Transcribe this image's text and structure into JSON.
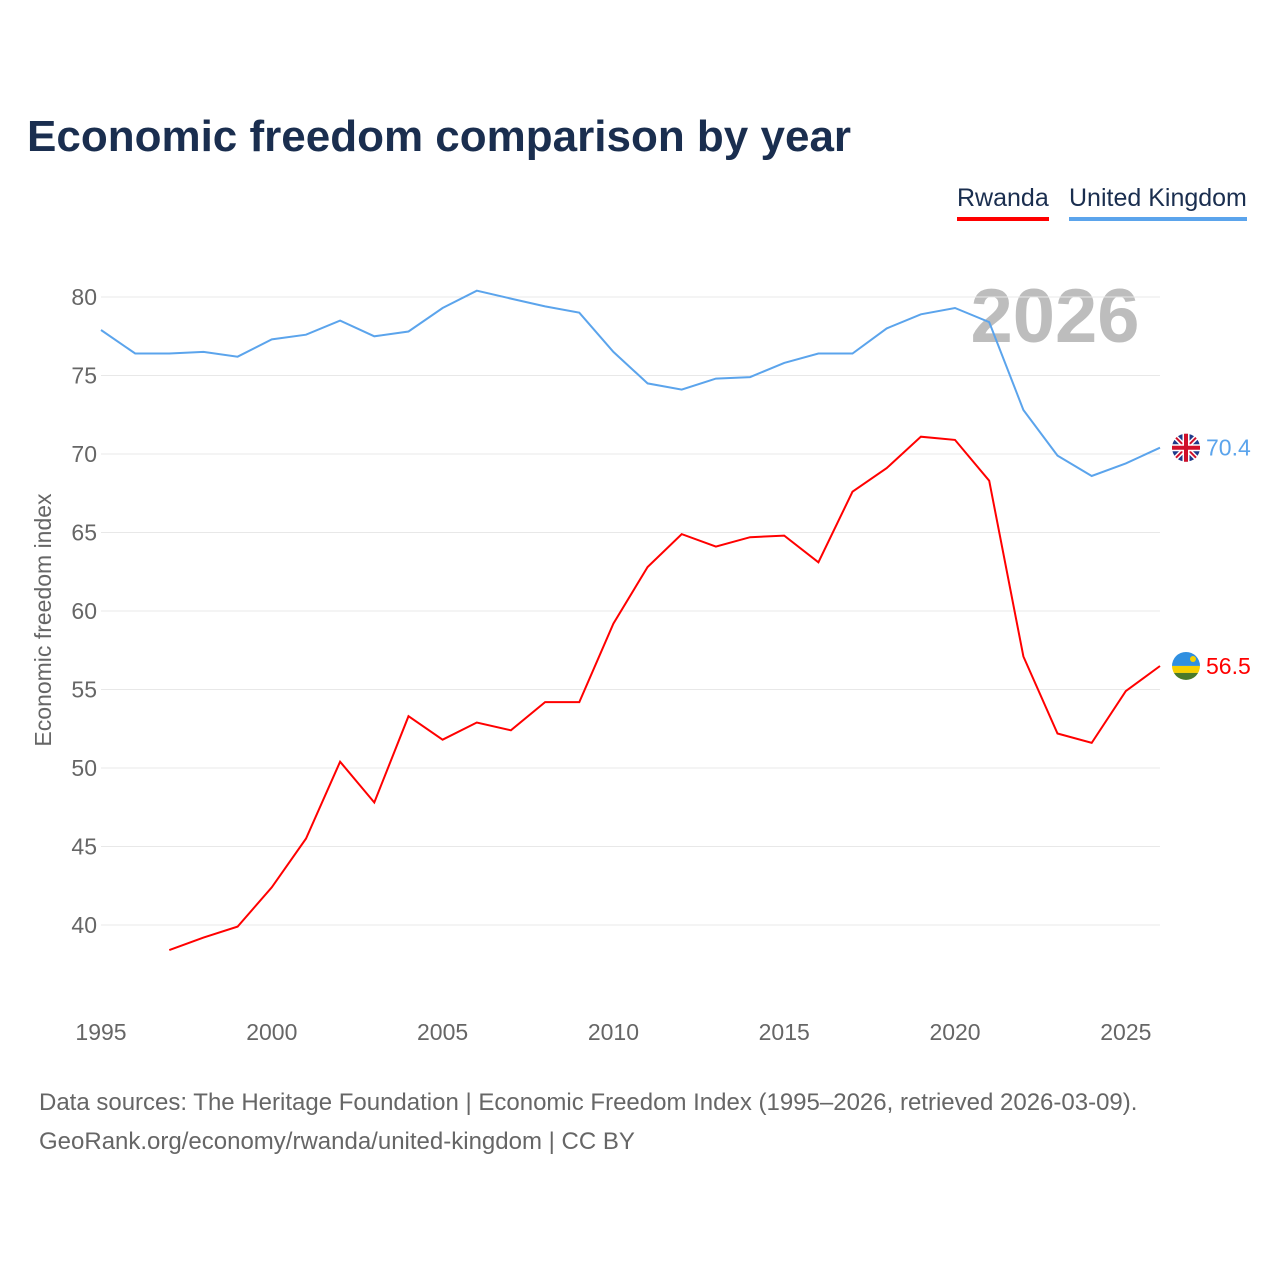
{
  "title": "Economic freedom comparison by year",
  "legend": [
    {
      "label": "Rwanda",
      "color": "#ff0000"
    },
    {
      "label": "United Kingdom",
      "color": "#5ba4ec"
    }
  ],
  "watermark_year": "2026",
  "source_line1": "Data sources: The Heritage Foundation | Economic Freedom Index (1995–2026, retrieved 2026-03-09).",
  "source_line2": "GeoRank.org/economy/rwanda/united-kingdom | CC BY",
  "chart_data": {
    "type": "line",
    "title": "Economic freedom comparison by year",
    "xlabel": "",
    "ylabel": "Economic freedom index",
    "xlim": [
      1995,
      2026
    ],
    "ylim": [
      35,
      82
    ],
    "xticks": [
      1995,
      2000,
      2005,
      2010,
      2015,
      2020,
      2025
    ],
    "yticks": [
      40,
      45,
      50,
      55,
      60,
      65,
      70,
      75,
      80
    ],
    "grid": true,
    "legend_position": "top-right",
    "series": [
      {
        "name": "Rwanda",
        "color": "#ff0000",
        "end_label": "56.5",
        "x": [
          1997,
          1998,
          1999,
          2000,
          2001,
          2002,
          2003,
          2004,
          2005,
          2006,
          2007,
          2008,
          2009,
          2010,
          2011,
          2012,
          2013,
          2014,
          2015,
          2016,
          2017,
          2018,
          2019,
          2020,
          2021,
          2022,
          2023,
          2024,
          2025,
          2026
        ],
        "values": [
          38.4,
          39.2,
          39.9,
          42.4,
          45.5,
          50.4,
          47.8,
          53.3,
          51.8,
          52.9,
          52.4,
          54.2,
          54.2,
          59.2,
          62.8,
          64.9,
          64.1,
          64.7,
          64.8,
          63.1,
          67.6,
          69.1,
          71.1,
          70.9,
          68.3,
          57.1,
          52.2,
          51.6,
          54.9,
          56.5
        ]
      },
      {
        "name": "United Kingdom",
        "color": "#5ba4ec",
        "end_label": "70.4",
        "x": [
          1995,
          1996,
          1997,
          1998,
          1999,
          2000,
          2001,
          2002,
          2003,
          2004,
          2005,
          2006,
          2007,
          2008,
          2009,
          2010,
          2011,
          2012,
          2013,
          2014,
          2015,
          2016,
          2017,
          2018,
          2019,
          2020,
          2021,
          2022,
          2023,
          2024,
          2025,
          2026
        ],
        "values": [
          77.9,
          76.4,
          76.4,
          76.5,
          76.2,
          77.3,
          77.6,
          78.5,
          77.5,
          77.8,
          79.3,
          80.4,
          79.9,
          79.4,
          79.0,
          76.5,
          74.5,
          74.1,
          74.8,
          74.9,
          75.8,
          76.4,
          76.4,
          78.0,
          78.9,
          79.3,
          78.4,
          72.8,
          69.9,
          68.6,
          69.4,
          70.4
        ]
      }
    ]
  }
}
